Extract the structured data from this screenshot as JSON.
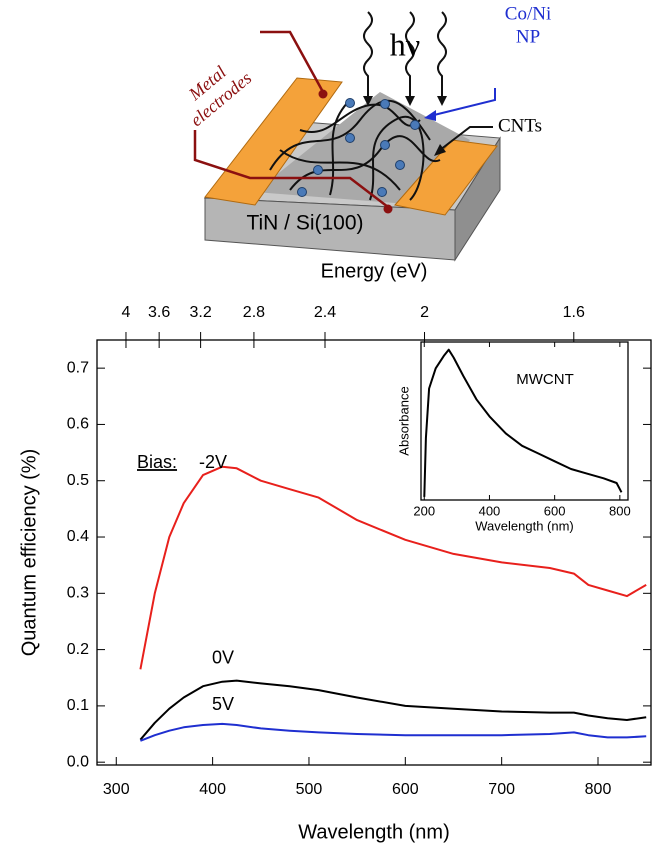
{
  "schematic": {
    "photon": "hν",
    "particles": [
      "Co/Ni",
      "NP"
    ],
    "tubes": "CNTs",
    "electrodes": [
      "Metal",
      "electrodes"
    ],
    "substrate": "TiN / Si(100)"
  },
  "chart_data": [
    {
      "type": "line",
      "x_label": "Wavelength (nm)",
      "y_label": "Quantum efficiency (%)",
      "x2_label": "Energy (eV)",
      "annotation": "Bias:",
      "x": [
        325,
        340,
        355,
        370,
        390,
        410,
        425,
        450,
        480,
        510,
        550,
        600,
        650,
        700,
        750,
        775,
        790,
        810,
        830,
        850
      ],
      "series": [
        {
          "name": "-2V",
          "color": "#e8201c",
          "values": [
            0.165,
            0.3,
            0.4,
            0.46,
            0.51,
            0.525,
            0.522,
            0.5,
            0.485,
            0.47,
            0.43,
            0.395,
            0.37,
            0.355,
            0.345,
            0.335,
            0.315,
            0.305,
            0.295,
            0.315
          ]
        },
        {
          "name": "0V",
          "color": "#000000",
          "values": [
            0.04,
            0.07,
            0.095,
            0.115,
            0.135,
            0.143,
            0.145,
            0.14,
            0.135,
            0.128,
            0.115,
            0.1,
            0.095,
            0.09,
            0.088,
            0.088,
            0.083,
            0.078,
            0.075,
            0.08
          ]
        },
        {
          "name": "5V",
          "color": "#1f2fd0",
          "values": [
            0.038,
            0.048,
            0.056,
            0.062,
            0.066,
            0.068,
            0.066,
            0.06,
            0.056,
            0.053,
            0.05,
            0.048,
            0.048,
            0.048,
            0.05,
            0.053,
            0.048,
            0.044,
            0.044,
            0.046
          ]
        }
      ],
      "xlim": [
        280,
        855
      ],
      "xticks": [
        300,
        400,
        500,
        600,
        700,
        800
      ],
      "ylim": [
        -0.005,
        0.75
      ],
      "yticks": [
        {
          "value": 0,
          "label": "0.0"
        },
        0.1,
        0.2,
        0.3,
        0.4,
        0.5,
        0.6,
        0.7
      ],
      "x2lim": [
        4.43,
        1.45
      ],
      "x2ticks": [
        4,
        3.6,
        3.2,
        2.8,
        2.4,
        2,
        1.6
      ],
      "x2_scale": "reciprocal"
    },
    {
      "type": "line",
      "title": "MWCNT",
      "x_label": "Wavelength (nm)",
      "y_label": "Absorbance",
      "x": [
        200,
        205,
        215,
        235,
        260,
        275,
        290,
        320,
        360,
        400,
        450,
        500,
        550,
        600,
        650,
        700,
        750,
        790,
        805
      ],
      "series": [
        {
          "color": "#000000",
          "values": [
            0.02,
            0.4,
            0.72,
            0.85,
            0.93,
            0.97,
            0.92,
            0.8,
            0.65,
            0.54,
            0.43,
            0.35,
            0.3,
            0.25,
            0.2,
            0.17,
            0.14,
            0.11,
            0.05
          ]
        }
      ],
      "xlim": [
        190,
        825
      ],
      "xticks": [
        200,
        400,
        600,
        800
      ],
      "ylim": [
        0,
        1.02
      ]
    }
  ]
}
